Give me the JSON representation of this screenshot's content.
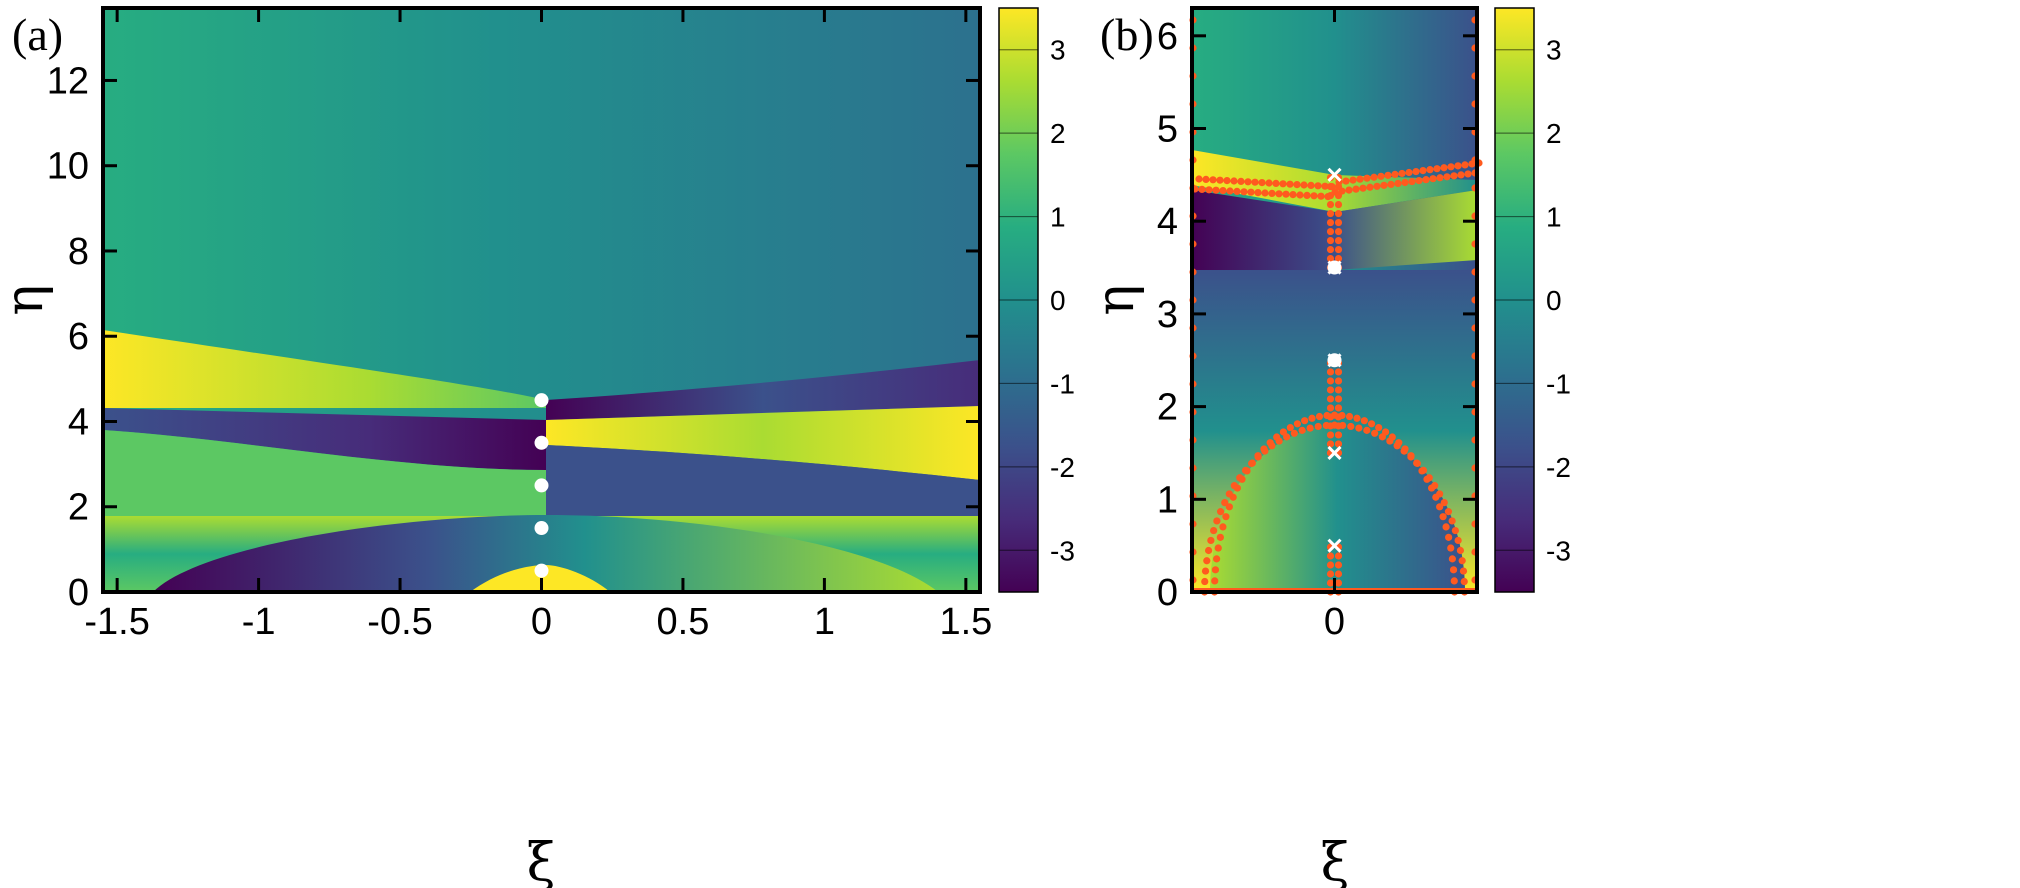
{
  "colors": {
    "viridis_stops": [
      "#440154",
      "#472c7a",
      "#3b518b",
      "#2c718e",
      "#21908d",
      "#27ad81",
      "#5cc863",
      "#aadc32",
      "#fde725"
    ],
    "marker_white": "#ffffff",
    "marker_orange": "#ff5a1f",
    "frame": "#000000"
  },
  "chart_data": [
    {
      "type": "heatmap",
      "panel_label": "(a)",
      "xlabel": "ξ",
      "ylabel": "η",
      "xlim": [
        -1.55,
        1.55
      ],
      "ylim": [
        0,
        13.7
      ],
      "xticks": [
        -1.5,
        -1,
        -0.5,
        0,
        0.5,
        1,
        1.5
      ],
      "xtick_labels": [
        "-1.5",
        "-1",
        "-0.5",
        "0",
        "0.5",
        "1",
        "1.5"
      ],
      "yticks": [
        0,
        2,
        4,
        6,
        8,
        10,
        12
      ],
      "ytick_labels": [
        "0",
        "2",
        "4",
        "6",
        "8",
        "10",
        "12"
      ],
      "colorbar": {
        "range": [
          -3.5,
          3.5
        ],
        "ticks": [
          3,
          2,
          1,
          0,
          -1,
          -2,
          -3
        ],
        "tick_labels": [
          "3",
          "2",
          "1",
          "0",
          "-1",
          "-2",
          "-3"
        ]
      },
      "points": [
        {
          "x": 0,
          "y": 0.5
        },
        {
          "x": 0,
          "y": 1.5
        },
        {
          "x": 0,
          "y": 2.5
        },
        {
          "x": 0,
          "y": 3.5
        },
        {
          "x": 0,
          "y": 4.5
        }
      ],
      "points_color": "#ffffff"
    },
    {
      "type": "heatmap",
      "panel_label": "(b)",
      "xlabel": "ξ",
      "ylabel": "η",
      "xlim": [
        -0.5,
        0.5
      ],
      "ylim": [
        0,
        6.3
      ],
      "xticks": [
        0
      ],
      "xtick_labels": [
        "0"
      ],
      "yticks": [
        0,
        1,
        2,
        3,
        4,
        5,
        6
      ],
      "ytick_labels": [
        "0",
        "1",
        "2",
        "3",
        "4",
        "5",
        "6"
      ],
      "colorbar": {
        "range": [
          -3.5,
          3.5
        ],
        "ticks": [
          3,
          2,
          1,
          0,
          -1,
          -2,
          -3
        ],
        "tick_labels": [
          "3",
          "2",
          "1",
          "0",
          "-1",
          "-2",
          "-3"
        ]
      },
      "points": [
        {
          "x": 0,
          "y": 3.5
        },
        {
          "x": 0,
          "y": 2.5
        }
      ],
      "points_color": "#ffffff",
      "crosses": [
        {
          "x": 0,
          "y": 0.5
        },
        {
          "x": 0,
          "y": 1.5
        },
        {
          "x": 0,
          "y": 2.5
        },
        {
          "x": 0,
          "y": 3.5
        },
        {
          "x": 0,
          "y": 4.5
        }
      ],
      "dotted_curves_color": "#ff5a1f"
    }
  ]
}
